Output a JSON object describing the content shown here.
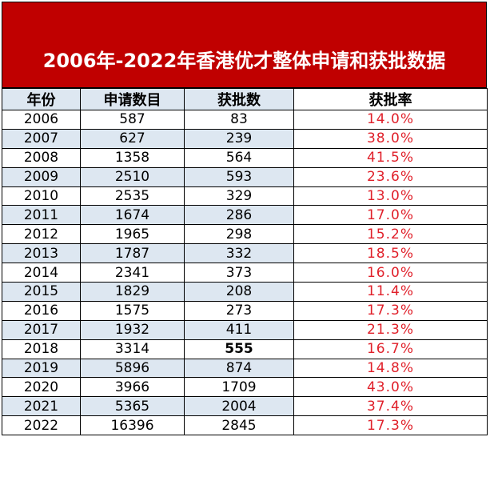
{
  "title": "2006年-2022年香港优才整体申请和获批数据",
  "headers": [
    "年份",
    "申请数目",
    "获批数",
    "获批率"
  ],
  "rows": [
    [
      "2006",
      "587",
      "83",
      "14.0%"
    ],
    [
      "2007",
      "627",
      "239",
      "38.0%"
    ],
    [
      "2008",
      "1358",
      "564",
      "41.5%"
    ],
    [
      "2009",
      "2510",
      "593",
      "23.6%"
    ],
    [
      "2010",
      "2535",
      "329",
      "13.0%"
    ],
    [
      "2011",
      "1674",
      "286",
      "17.0%"
    ],
    [
      "2012",
      "1965",
      "298",
      "15.2%"
    ],
    [
      "2013",
      "1787",
      "332",
      "18.5%"
    ],
    [
      "2014",
      "2341",
      "373",
      "16.0%"
    ],
    [
      "2015",
      "1829",
      "208",
      "11.4%"
    ],
    [
      "2016",
      "1575",
      "273",
      "17.3%"
    ],
    [
      "2017",
      "1932",
      "411",
      "21.3%"
    ],
    [
      "2018",
      "3314",
      "555",
      "16.7%"
    ],
    [
      "2019",
      "5896",
      "874",
      "14.8%"
    ],
    [
      "2020",
      "3966",
      "1709",
      "43.0%"
    ],
    [
      "2021",
      "5365",
      "2004",
      "37.4%"
    ],
    [
      "2022",
      "16396",
      "2845",
      "17.3%"
    ]
  ],
  "colors": {
    "title_bg": "#c00000",
    "title_text": "#ffffff",
    "shade": "#dde7f1",
    "rate_text": "#e0202a"
  }
}
